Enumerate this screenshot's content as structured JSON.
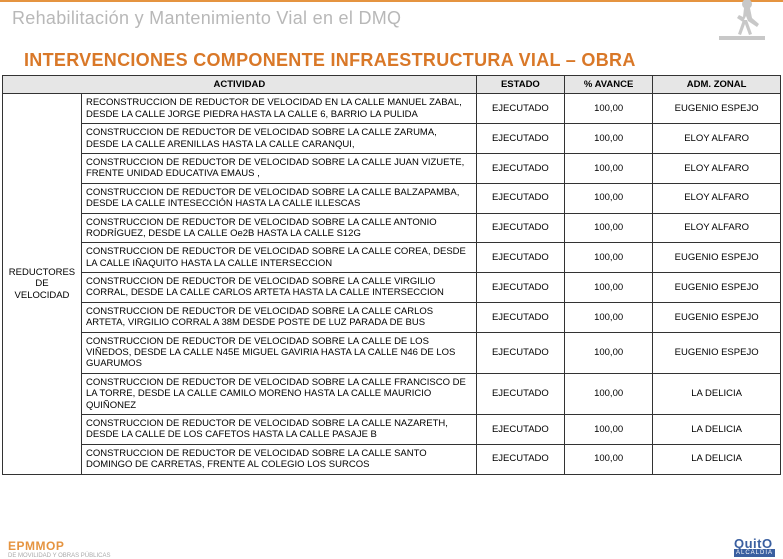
{
  "header": {
    "subtitle": "Rehabilitación y Mantenimiento Vial en el DMQ",
    "icon_name": "worker-icon"
  },
  "title": "INTERVENCIONES COMPONENTE INFRAESTRUCTURA VIAL – OBRA",
  "table": {
    "columns": {
      "actividad": "ACTIVIDAD",
      "estado": "ESTADO",
      "avance": "% AVANCE",
      "adm_zonal": "ADM. ZONAL"
    },
    "category_label": "REDUCTORES DE VELOCIDAD",
    "rows": [
      {
        "actividad": "RECONSTRUCCION DE REDUCTOR DE VELOCIDAD EN LA CALLE MANUEL ZABAL, DESDE LA CALLE JORGE PIEDRA HASTA LA CALLE 6, BARRIO LA PULIDA",
        "estado": "EJECUTADO",
        "avance": "100,00",
        "adm_zonal": "EUGENIO ESPEJO"
      },
      {
        "actividad": "CONSTRUCCION DE REDUCTOR DE VELOCIDAD SOBRE LA CALLE ZARUMA, DESDE LA CALLE ARENILLAS HASTA LA CALLE CARANQUI,",
        "estado": "EJECUTADO",
        "avance": "100,00",
        "adm_zonal": "ELOY ALFARO"
      },
      {
        "actividad": "CONSTRUCCION DE REDUCTOR DE VELOCIDAD SOBRE LA CALLE  JUAN VIZUETE,  FRENTE UNIDAD EDUCATIVA EMAUS  ,",
        "estado": "EJECUTADO",
        "avance": "100,00",
        "adm_zonal": "ELOY ALFARO"
      },
      {
        "actividad": "CONSTRUCCION DE REDUCTOR DE VELOCIDAD SOBRE LA CALLE BALZAPAMBA,  DESDE LA CALLE INTESECCIÓN HASTA LA CALLE ILLESCAS",
        "estado": "EJECUTADO",
        "avance": "100,00",
        "adm_zonal": "ELOY ALFARO"
      },
      {
        "actividad": "CONSTRUCCION DE REDUCTOR DE VELOCIDAD SOBRE LA CALLE  ANTONIO RODRÍGUEZ,  DESDE LA CALLE Oe2B HASTA LA CALLE S12G",
        "estado": "EJECUTADO",
        "avance": "100,00",
        "adm_zonal": "ELOY ALFARO"
      },
      {
        "actividad": "CONSTRUCCION DE REDUCTOR DE VELOCIDAD SOBRE LA CALLE  COREA,  DESDE LA CALLE IÑAQUITO HASTA LA CALLE INTERSECCION",
        "estado": "EJECUTADO",
        "avance": "100,00",
        "adm_zonal": "EUGENIO ESPEJO"
      },
      {
        "actividad": "CONSTRUCCION DE REDUCTOR DE VELOCIDAD SOBRE LA CALLE  VIRGILIO CORRAL, DESDE LA CALLE CARLOS ARTETA HASTA LA CALLE INTERSECCION",
        "estado": "EJECUTADO",
        "avance": "100,00",
        "adm_zonal": "EUGENIO ESPEJO"
      },
      {
        "actividad": "CONSTRUCCION DE REDUCTOR DE VELOCIDAD SOBRE LA CALLE  CARLOS ARTETA,  VIRGILIO CORRAL  A 38M DESDE POSTE DE LUZ PARADA DE BUS",
        "estado": "EJECUTADO",
        "avance": "100,00",
        "adm_zonal": "EUGENIO ESPEJO"
      },
      {
        "actividad": "CONSTRUCCION DE REDUCTOR DE VELOCIDAD SOBRE LA CALLE  DE LOS VIÑEDOS,  DESDE LA CALLE N45E MIGUEL GAVIRIA HASTA LA CALLE N46 DE LOS GUARUMOS",
        "estado": "EJECUTADO",
        "avance": "100,00",
        "adm_zonal": "EUGENIO ESPEJO"
      },
      {
        "actividad": "CONSTRUCCION DE REDUCTOR DE VELOCIDAD SOBRE LA CALLE  FRANCISCO DE LA TORRE,  DESDE LA CALLE CAMILO MORENO HASTA LA CALLE MAURICIO QUIÑONEZ",
        "estado": "EJECUTADO",
        "avance": "100,00",
        "adm_zonal": "LA DELICIA"
      },
      {
        "actividad": "CONSTRUCCION DE REDUCTOR DE VELOCIDAD SOBRE LA CALLE  NAZARETH,  DESDE LA CALLE DE LOS CAFETOS HASTA LA CALLE PASAJE B",
        "estado": "EJECUTADO",
        "avance": "100,00",
        "adm_zonal": "LA DELICIA"
      },
      {
        "actividad": "CONSTRUCCION DE REDUCTOR DE VELOCIDAD SOBRE LA CALLE  SANTO DOMINGO DE CARRETAS,  FRENTE AL COLEGIO LOS SURCOS",
        "estado": "EJECUTADO",
        "avance": "100,00",
        "adm_zonal": "LA DELICIA"
      }
    ]
  },
  "footer": {
    "left_logo": "EPMMOP",
    "left_sub": "DE MOVILIDAD Y OBRAS PÚBLICAS",
    "right_logo": "QuitO",
    "right_sub": "ALCALDÍA"
  },
  "colors": {
    "accent_orange": "#d97828",
    "header_orange_line": "#e59440",
    "header_gray_text": "#b8b8b8",
    "table_border": "#333333",
    "table_header_bg": "#e6e6e6",
    "quito_blue": "#3a5fa0"
  }
}
